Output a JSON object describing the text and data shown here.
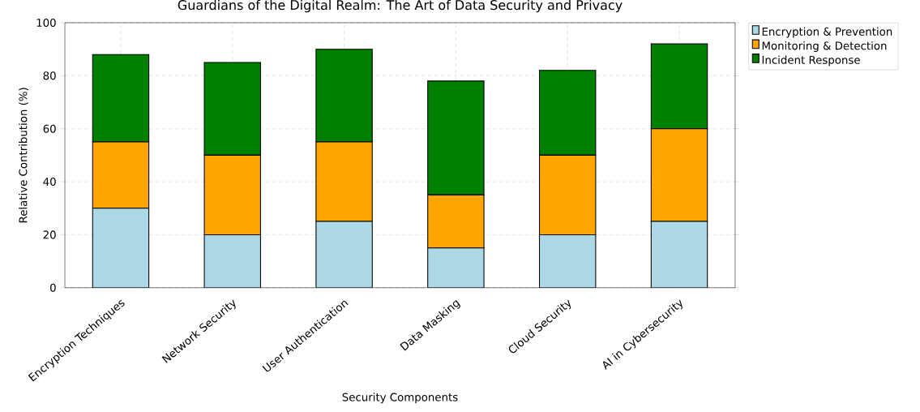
{
  "chart_data": {
    "type": "bar",
    "stacked": true,
    "title": "Guardians of the Digital Realm: The Art of Data Security and Privacy",
    "xlabel": "Security Components",
    "ylabel": "Relative Contribution (%)",
    "categories": [
      "Encryption Techniques",
      "Network Security",
      "User Authentication",
      "Data Masking",
      "Cloud Security",
      "AI in Cybersecurity"
    ],
    "series": [
      {
        "name": "Encryption & Prevention",
        "color": "#add8e6",
        "values": [
          30,
          20,
          25,
          15,
          20,
          25
        ]
      },
      {
        "name": "Monitoring & Detection",
        "color": "#ffa500",
        "values": [
          25,
          30,
          30,
          20,
          30,
          35
        ]
      },
      {
        "name": "Incident Response",
        "color": "#008000",
        "values": [
          33,
          35,
          35,
          43,
          32,
          32
        ]
      }
    ],
    "ylim": [
      0,
      100
    ],
    "yticks": [
      0,
      20,
      40,
      60,
      80,
      100
    ],
    "grid": true,
    "legend": "right"
  }
}
